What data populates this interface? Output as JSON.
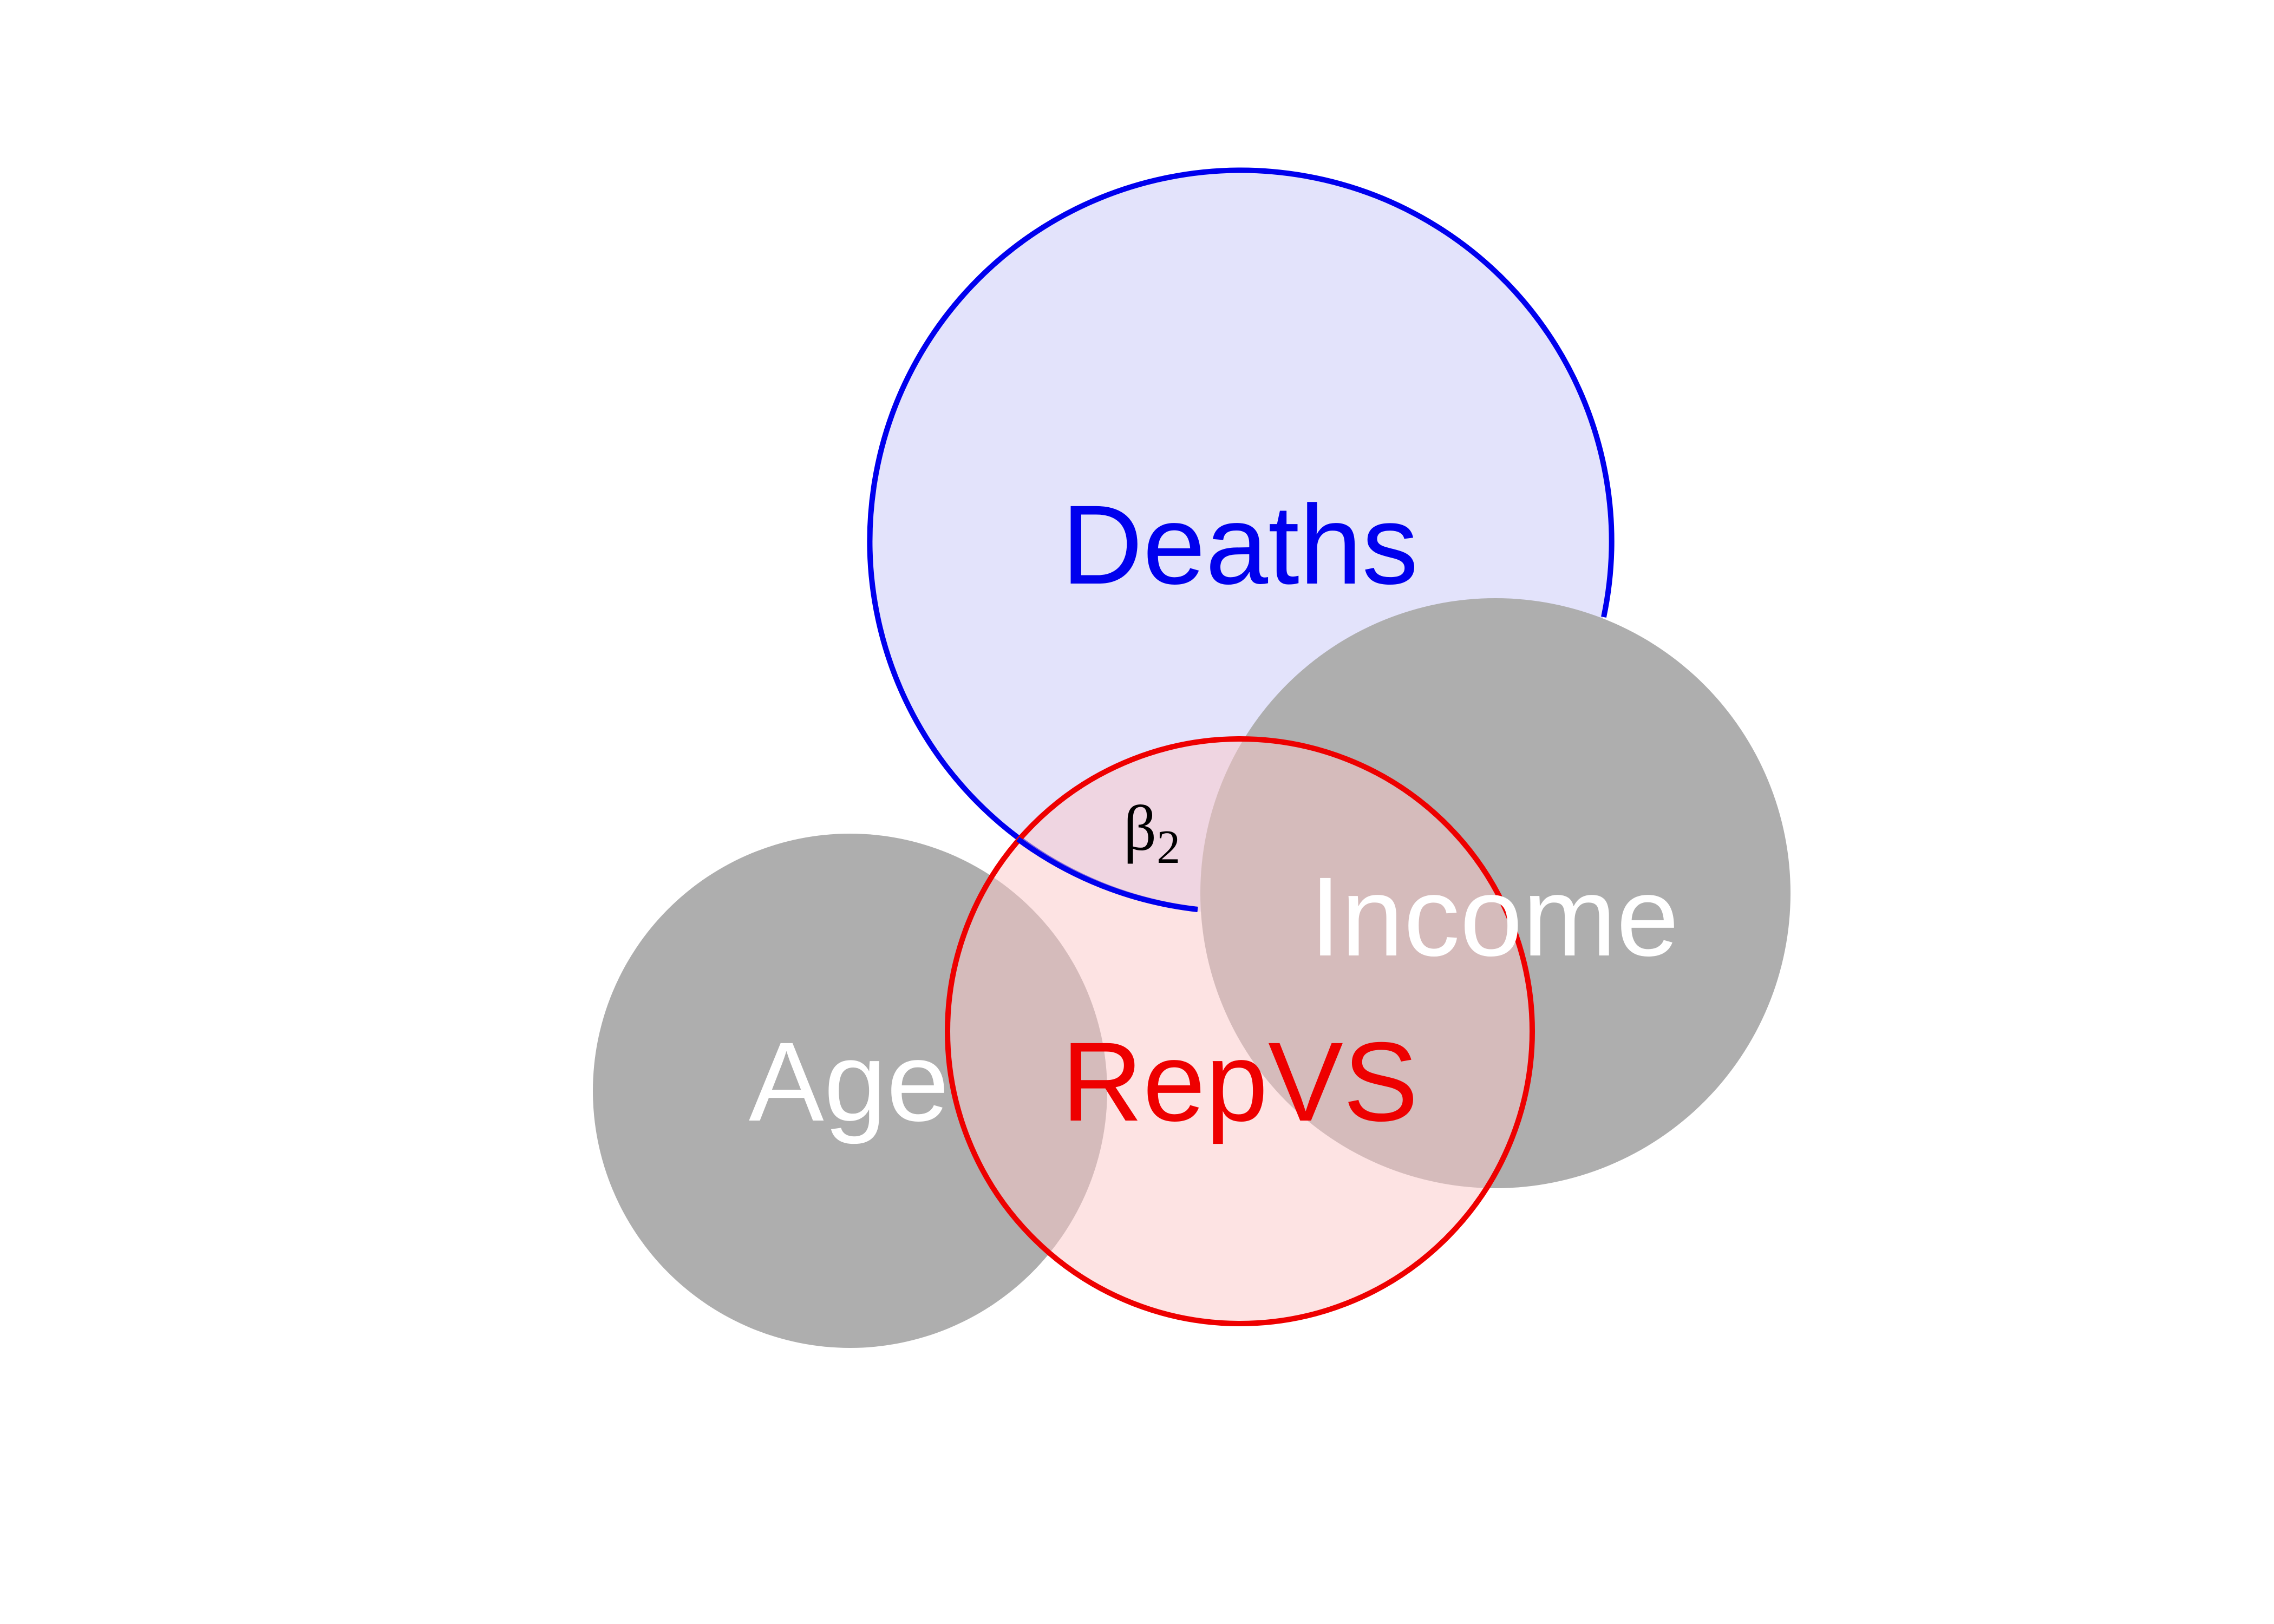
{
  "diagram": {
    "circles": {
      "deaths": {
        "label": "Deaths",
        "fill": "#e3e3fb",
        "stroke": "#0000ee",
        "label_color": "#0000ee"
      },
      "income": {
        "label": "Income",
        "fill": "#999999",
        "label_color": "#ffffff"
      },
      "age": {
        "label": "Age",
        "fill": "#999999",
        "label_color": "#ffffff"
      },
      "repvs": {
        "label": "RepVS",
        "fill": "#fcc8c8",
        "stroke": "#ee0000",
        "label_color": "#ee0000"
      }
    },
    "coefficient": {
      "symbol": "β",
      "subscript": "2"
    }
  }
}
